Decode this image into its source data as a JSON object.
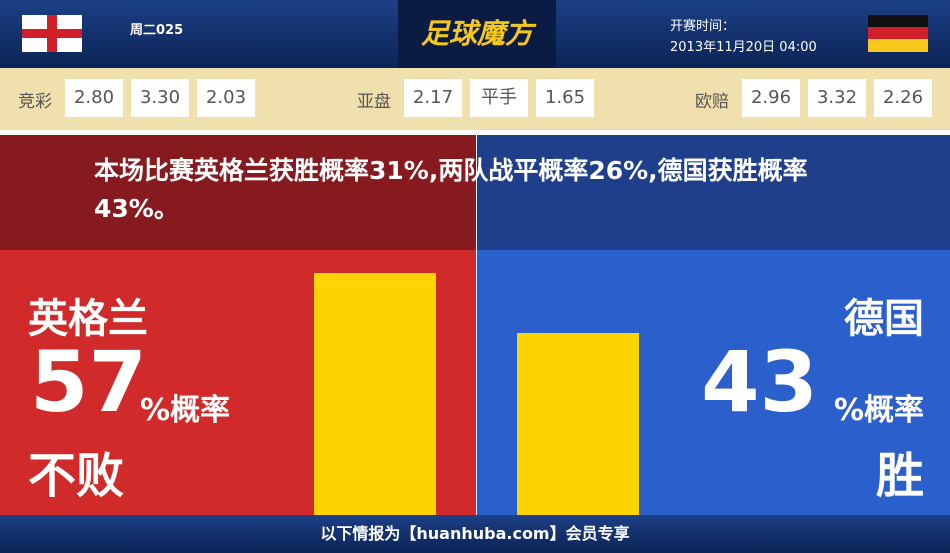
{
  "header": {
    "match_no": "周二025",
    "logo": "足球魔方",
    "kickoff_label": "开赛时间：",
    "kickoff_time": "2013年11月20日 04:00"
  },
  "odds": [
    {
      "label": "竞彩",
      "values": [
        "2.80",
        "3.30",
        "2.03"
      ]
    },
    {
      "label": "亚盘",
      "values": [
        "2.17",
        "平手",
        "1.65"
      ]
    },
    {
      "label": "欧赔",
      "values": [
        "2.96",
        "3.32",
        "2.26"
      ]
    }
  ],
  "summary": "本场比赛英格兰获胜概率31%,两队战平概率26%,德国获胜概率43%。",
  "home": {
    "team": "英格兰",
    "value": 57,
    "unit": "%概率",
    "outcome": "不败"
  },
  "away": {
    "team": "德国",
    "value": 43,
    "unit": "%概率",
    "outcome": "胜"
  },
  "footer": "以下情报为【huanhuba.com】会员专享"
}
